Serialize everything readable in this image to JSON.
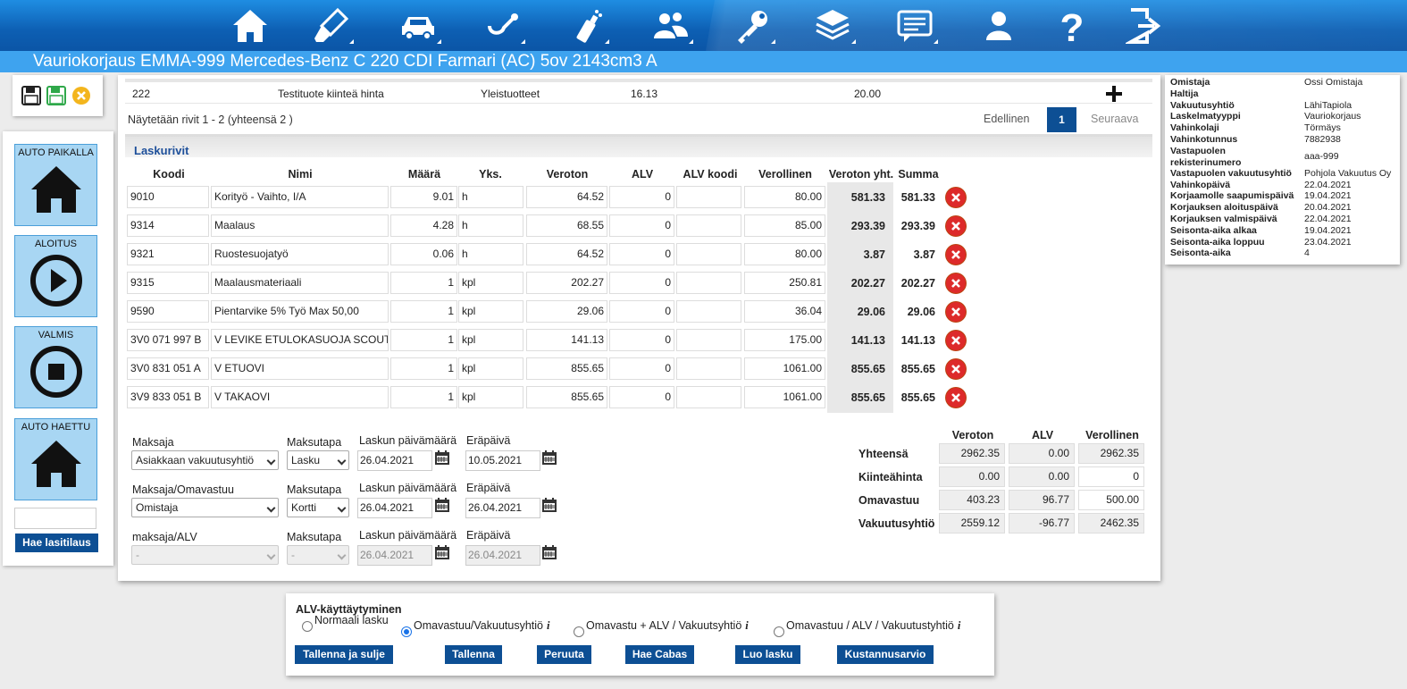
{
  "nav": {
    "icons": [
      "home-icon",
      "paint-brush-icon",
      "car-icon",
      "tow-hook-icon",
      "spray-can-icon",
      "users-icon",
      "key-icon",
      "layers-icon",
      "chat-icon",
      "user-icon",
      "help-icon",
      "logout-icon"
    ]
  },
  "title": "Vauriokorjaus EMMA-999 Mercedes-Benz C 220 CDI Farmari (AC) 5ov 2143cm3 A",
  "status_buttons": {
    "auto_paikalla": "AUTO PAIKALLA",
    "aloitus": "ALOITUS",
    "valmis": "VALMIS",
    "auto_haettu": "AUTO HAETTU",
    "hae_lasitilaus": "Hae lasitilaus"
  },
  "product_row": {
    "code": "222",
    "name": "Testituote kiinteä hinta",
    "group": "Yleistuotteet",
    "price": "16.13",
    "price_vat": "20.00"
  },
  "pager": {
    "text": "Näytetään rivit 1 - 2 (yhteensä 2 )",
    "prev": "Edellinen",
    "page": "1",
    "next": "Seuraava"
  },
  "section_title": "Laskurivit",
  "columns": {
    "koodi": "Koodi",
    "nimi": "Nimi",
    "maara": "Määrä",
    "yks": "Yks.",
    "veroton": "Veroton",
    "alv": "ALV",
    "alv_koodi": "ALV koodi",
    "verollinen": "Verollinen",
    "veroton_yht": "Veroton yht.",
    "summa": "Summa"
  },
  "rows": [
    {
      "koodi": "9010",
      "nimi": "Korityö - Vaihto, I/A",
      "maara": "9.01",
      "yks": "h",
      "veroton": "64.52",
      "alv": "0",
      "alv_koodi": "",
      "verollinen": "80.00",
      "veroton_yht": "581.33",
      "summa": "581.33"
    },
    {
      "koodi": "9314",
      "nimi": "Maalaus",
      "maara": "4.28",
      "yks": "h",
      "veroton": "68.55",
      "alv": "0",
      "alv_koodi": "",
      "verollinen": "85.00",
      "veroton_yht": "293.39",
      "summa": "293.39"
    },
    {
      "koodi": "9321",
      "nimi": "Ruostesuojatyö",
      "maara": "0.06",
      "yks": "h",
      "veroton": "64.52",
      "alv": "0",
      "alv_koodi": "",
      "verollinen": "80.00",
      "veroton_yht": "3.87",
      "summa": "3.87"
    },
    {
      "koodi": "9315",
      "nimi": "Maalausmateriaali",
      "maara": "1",
      "yks": "kpl",
      "veroton": "202.27",
      "alv": "0",
      "alv_koodi": "",
      "verollinen": "250.81",
      "veroton_yht": "202.27",
      "summa": "202.27"
    },
    {
      "koodi": "9590",
      "nimi": "Pientarvike 5% Työ Max 50,00",
      "maara": "1",
      "yks": "kpl",
      "veroton": "29.06",
      "alv": "0",
      "alv_koodi": "",
      "verollinen": "36.04",
      "veroton_yht": "29.06",
      "summa": "29.06"
    },
    {
      "koodi": "3V0 071 997 B",
      "nimi": "V LEVIKE ETULOKASUOJA SCOUT",
      "maara": "1",
      "yks": "kpl",
      "veroton": "141.13",
      "alv": "0",
      "alv_koodi": "",
      "verollinen": "175.00",
      "veroton_yht": "141.13",
      "summa": "141.13"
    },
    {
      "koodi": "3V0 831 051 A",
      "nimi": "V ETUOVI",
      "maara": "1",
      "yks": "kpl",
      "veroton": "855.65",
      "alv": "0",
      "alv_koodi": "",
      "verollinen": "1061.00",
      "veroton_yht": "855.65",
      "summa": "855.65"
    },
    {
      "koodi": "3V9 833 051 B",
      "nimi": "V TAKAOVI",
      "maara": "1",
      "yks": "kpl",
      "veroton": "855.65",
      "alv": "0",
      "alv_koodi": "",
      "verollinen": "1061.00",
      "veroton_yht": "855.65",
      "summa": "855.65"
    }
  ],
  "payers": [
    {
      "label": "Maksaja",
      "value": "Asiakkaan vakuutusyhtiö",
      "method_label": "Maksutapa",
      "method": "Lasku",
      "date_label": "Laskun päivämäärä",
      "date": "26.04.2021",
      "due_label": "Eräpäivä",
      "due": "10.05.2021"
    },
    {
      "label": "Maksaja/Omavastuu",
      "value": "Omistaja",
      "method_label": "Maksutapa",
      "method": "Kortti",
      "date_label": "Laskun päivämäärä",
      "date": "26.04.2021",
      "due_label": "Eräpäivä",
      "due": "26.04.2021"
    },
    {
      "label": "maksaja/ALV",
      "value": "-",
      "method_label": "Maksutapa",
      "method": "-",
      "date_label": "Laskun päivämäärä",
      "date": "26.04.2021",
      "due_label": "Eräpäivä",
      "due": "26.04.2021"
    }
  ],
  "summary": {
    "headers": {
      "veroton": "Veroton",
      "alv": "ALV",
      "verollinen": "Verollinen"
    },
    "rows": [
      {
        "label": "Yhteensä",
        "veroton": "2962.35",
        "alv": "0.00",
        "verollinen": "2962.35"
      },
      {
        "label": "Kiinteähinta",
        "veroton": "0.00",
        "alv": "0.00",
        "verollinen": "0"
      },
      {
        "label": "Omavastuu",
        "veroton": "403.23",
        "alv": "96.77",
        "verollinen": "500.00"
      },
      {
        "label": "Vakuutusyhtiö",
        "veroton": "2559.12",
        "alv": "-96.77",
        "verollinen": "2462.35"
      }
    ]
  },
  "info": [
    {
      "k": "Omistaja",
      "v": "Ossi Omistaja"
    },
    {
      "k": "Haltija",
      "v": ""
    },
    {
      "k": "Vakuutusyhtiö",
      "v": "LähiTapiola"
    },
    {
      "k": "Laskelmatyyppi",
      "v": "Vauriokorjaus"
    },
    {
      "k": "Vahinkolaji",
      "v": "Törmäys"
    },
    {
      "k": "Vahinkotunnus",
      "v": "7882938"
    },
    {
      "k": "Vastapuolen rekisterinumero",
      "v": "aaa-999"
    },
    {
      "k": "Vastapuolen vakuutusyhtiö",
      "v": "Pohjola Vakuutus Oy"
    },
    {
      "k": "Vahinkopäivä",
      "v": "22.04.2021"
    },
    {
      "k": "Korjaamolle saapumispäivä",
      "v": "19.04.2021"
    },
    {
      "k": "Korjauksen aloituspäivä",
      "v": "20.04.2021"
    },
    {
      "k": "Korjauksen valmispäivä",
      "v": "22.04.2021"
    },
    {
      "k": "Seisonta-aika alkaa",
      "v": "19.04.2021"
    },
    {
      "k": "Seisonta-aika loppuu",
      "v": "23.04.2021"
    },
    {
      "k": "Seisonta-aika",
      "v": "4"
    }
  ],
  "alv": {
    "title": "ALV-käyttäytyminen",
    "options": [
      "Normaali lasku",
      "Omavastuu/Vakuutusyhtiö",
      "Omavastu + ALV / Vakuutsyhtiö",
      "Omavastuu / ALV / Vakuutustyhtiö"
    ],
    "selected_index": 1,
    "info_glyph": "i",
    "buttons": [
      "Tallenna ja sulje",
      "Tallenna",
      "Peruuta",
      "Hae Cabas",
      "Luo lasku",
      "Kustannusarvio"
    ]
  }
}
